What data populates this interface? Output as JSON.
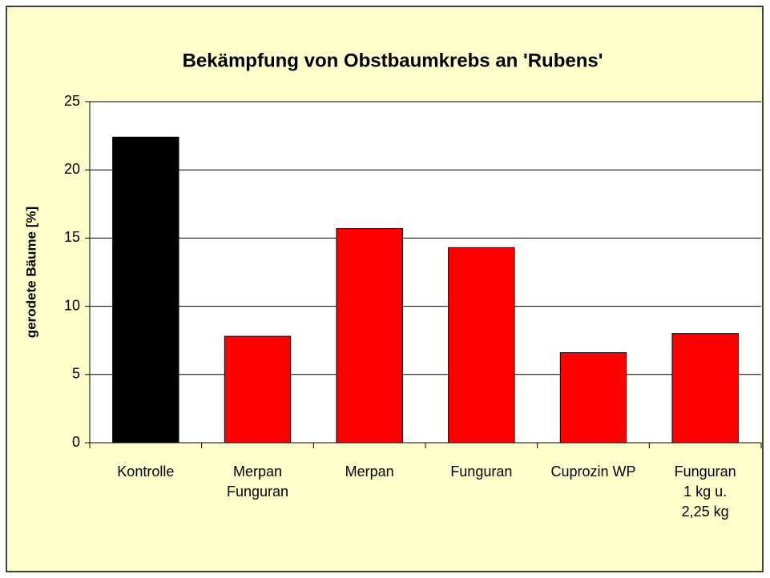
{
  "chart_data": {
    "type": "bar",
    "title": "Bekämpfung von Obstbaumkrebs an 'Rubens'",
    "y_label": "gerodete Bäume [%]",
    "categories": [
      "Kontrolle",
      "Merpan\nFunguran",
      "Merpan",
      "Funguran",
      "Cuprozin WP",
      "Funguran\n1 kg u.\n2,25 kg"
    ],
    "values": [
      22.4,
      7.8,
      15.7,
      14.3,
      6.6,
      8.0
    ],
    "colors": [
      "#000000",
      "#ff0000",
      "#ff0000",
      "#ff0000",
      "#ff0000",
      "#ff0000"
    ],
    "ylim": [
      0,
      25
    ],
    "yticks": [
      0,
      5,
      10,
      15,
      20,
      25
    ],
    "grid": true
  }
}
